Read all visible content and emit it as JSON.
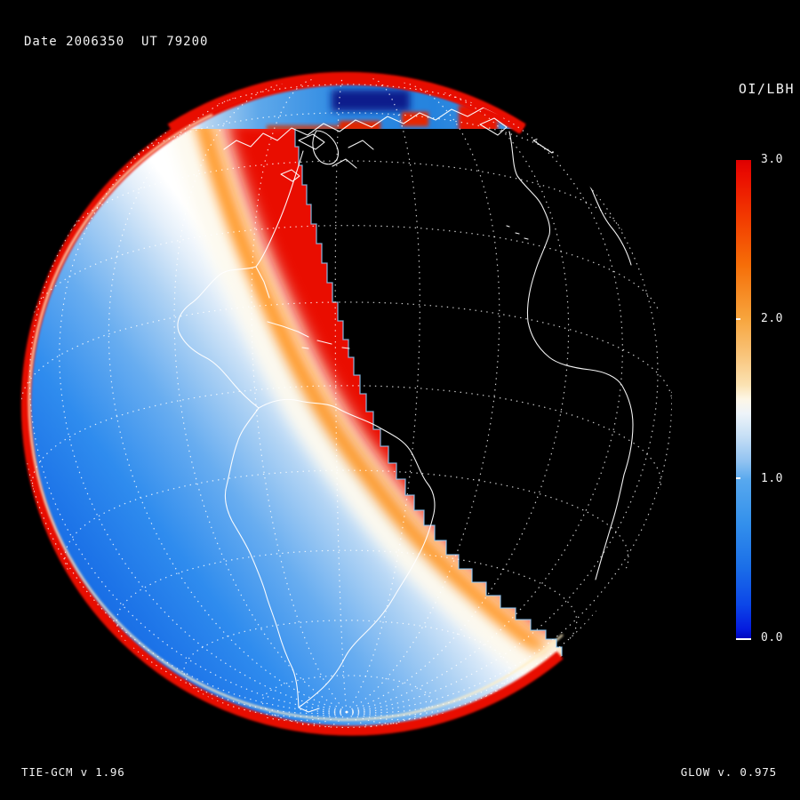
{
  "header": {
    "date_label": "Date 2006350  UT 79200"
  },
  "colorbar": {
    "title": "OI/LBH",
    "tick_labels": [
      "3.0",
      "2.0",
      "1.0",
      "0.0"
    ],
    "range_min": 0.0,
    "range_max": 3.0
  },
  "footer": {
    "model_left": "TIE-GCM v 1.96",
    "model_right": "GLOW v. 0.975"
  },
  "colors": {
    "background": "#000000",
    "text": "#ffffff",
    "data_red": "#e90d00",
    "data_blue_mid": "#2e8cec",
    "terminator_white": "#fdfaf0",
    "band_blue": "#2b88e2",
    "navy_patch": "#0b1e8c",
    "jagged_edge_fringe": "#8fd0ff"
  },
  "chart_data": {
    "type": "heatmap",
    "title": "OI/LBH",
    "projection": "orthographic globe centered near South America (Americas day side, Atlantic/Africa night side)",
    "field": "OI/LBH far-ultraviolet airglow emission ratio, simulated",
    "date_yyyyddd": "2006350",
    "ut_seconds": "79200",
    "models": {
      "atmosphere": "TIE-GCM v 1.96",
      "airglow": "GLOW v. 0.975"
    },
    "colorbar": {
      "min": 0.0,
      "max": 3.0,
      "ticks": [
        3.0,
        2.0,
        1.0,
        0.0
      ],
      "orientation": "vertical, right side, red at top to blue at bottom",
      "stops": [
        {
          "value": 0.0,
          "color": "#0008c0"
        },
        {
          "value": 0.3,
          "color": "#0c46e8"
        },
        {
          "value": 0.7,
          "color": "#1b6fe8"
        },
        {
          "value": 1.0,
          "color": "#57a8ee"
        },
        {
          "value": 1.5,
          "color": "#fdf6e6"
        },
        {
          "value": 2.0,
          "color": "#f7a43c"
        },
        {
          "value": 2.5,
          "color": "#f45500"
        },
        {
          "value": 3.0,
          "color": "#de0000"
        }
      ]
    },
    "regions": [
      {
        "name": "western dayside disk",
        "appearance": "blue field",
        "approx_value": 1.0
      },
      {
        "name": "terminator band",
        "appearance": "white/cream diagonal band from top-left to bottom-right",
        "approx_value": 1.5
      },
      {
        "name": "eastern dayside wedge",
        "appearance": "saturated red with stair-stepped eastern edge",
        "approx_value": 3.0
      },
      {
        "name": "sunlit limb",
        "appearance": "red ring around day side of disk",
        "approx_value": 3.0
      },
      {
        "name": "northern band",
        "appearance": "blue arc along top limb with dark navy patch",
        "approx_value": 0.9
      },
      {
        "name": "nightside",
        "appearance": "black, no data; only dotted graticule and white coastlines"
      }
    ],
    "grid": "white dotted lat/lon graticule, ~15 degree spacing",
    "coastlines": "white outlines: North America, Caribbean, South America, west Africa"
  }
}
